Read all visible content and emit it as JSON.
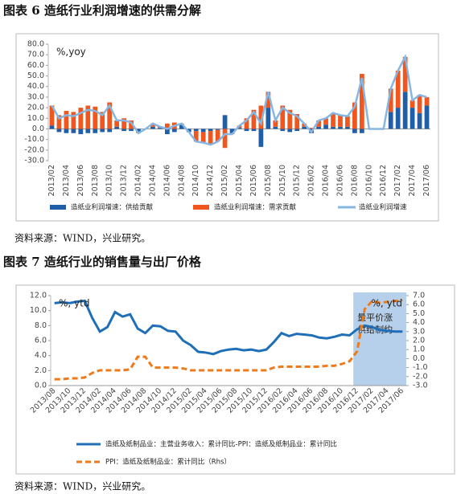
{
  "chart_data": [
    {
      "type": "bar",
      "stacked": true,
      "title": "图表 6  造纸行业利润增速的供需分解",
      "source": "资料来源：WIND，兴业研究。",
      "annotation": "%,yoy",
      "categories": [
        "2013/02",
        null,
        "2013/04",
        null,
        "2013/06",
        null,
        "2013/08",
        null,
        "2013/10",
        null,
        "2013/12",
        null,
        "2014/02",
        null,
        "2014/04",
        null,
        "2014/06",
        null,
        "2014/08",
        null,
        "2014/10",
        null,
        "2014/12",
        null,
        "2015/02",
        null,
        "2015/04",
        null,
        "2015/06",
        null,
        "2015/08",
        null,
        "2015/10",
        null,
        "2015/12",
        null,
        "2016/02",
        null,
        "2016/04",
        null,
        "2016/06",
        null,
        "2016/08",
        null,
        "2016/10",
        null,
        "2016/12",
        null,
        "2017/02",
        null,
        "2017/04",
        null,
        "2017/06"
      ],
      "series": [
        {
          "name": "造纸业利润增速：供给贡献",
          "type": "bar",
          "color": "#1f5ea8",
          "values": [
            3,
            -3,
            -4,
            -4,
            -5,
            -4,
            -4,
            -3,
            -3,
            2,
            -2,
            -2,
            -3,
            0,
            2,
            1,
            -5,
            -3,
            4,
            -3,
            -2,
            -3,
            -2,
            -1,
            13,
            -4,
            1,
            -2,
            -2,
            -17,
            20,
            2,
            -2,
            -3,
            -2,
            2,
            -4,
            2,
            4,
            2,
            2,
            2,
            -4,
            -4,
            0,
            0,
            0,
            16,
            20,
            35,
            20,
            15,
            22
          ]
        },
        {
          "name": "造纸业利润增速：需求贡献",
          "type": "bar",
          "color": "#f0561d",
          "values": [
            19,
            13,
            17,
            16,
            20,
            22,
            21,
            16,
            25,
            6,
            10,
            8,
            -1,
            0,
            3,
            1,
            5,
            6,
            1,
            0,
            -10,
            -10,
            -13,
            -11,
            -18,
            -1,
            2,
            10,
            18,
            22,
            15,
            6,
            22,
            18,
            14,
            3,
            1,
            6,
            6,
            13,
            11,
            10,
            25,
            52,
            0,
            0,
            0,
            22,
            35,
            33,
            7,
            17,
            8
          ]
        },
        {
          "name": "造纸业利润增速",
          "type": "line",
          "color": "#86b6e2",
          "values": [
            22,
            10,
            13,
            12,
            15,
            18,
            17,
            13,
            22,
            8,
            8,
            6,
            -4,
            0,
            5,
            2,
            0,
            3,
            5,
            -3,
            -12,
            -13,
            -15,
            -12,
            -5,
            -5,
            3,
            8,
            16,
            5,
            35,
            8,
            20,
            15,
            12,
            5,
            -3,
            8,
            10,
            15,
            13,
            12,
            21,
            48,
            0,
            0,
            0,
            38,
            55,
            68,
            27,
            32,
            30
          ]
        }
      ],
      "ylim": [
        -30,
        80
      ],
      "yticks": [
        {
          "value": -30,
          "label": "-30.0"
        },
        {
          "value": -20,
          "label": "-20.0"
        },
        {
          "value": -10,
          "label": "-10.0"
        },
        {
          "value": 0,
          "label": "0.0"
        },
        {
          "value": 10,
          "label": "10.0"
        },
        {
          "value": 20,
          "label": "20.0"
        },
        {
          "value": 30,
          "label": "30.0"
        },
        {
          "value": 40,
          "label": "40.0"
        },
        {
          "value": 50,
          "label": "50.0"
        },
        {
          "value": 60,
          "label": "60.0"
        },
        {
          "value": 70,
          "label": "70.0"
        },
        {
          "value": 80,
          "label": "80.0"
        }
      ],
      "grid": false,
      "legend": "bottom"
    },
    {
      "type": "line",
      "title": "图表 7  造纸行业的销售量与出厂价格",
      "source": "资料来源：WIND，兴业研究。",
      "annotation": "%, ytd",
      "annotation_right": "%, ytd",
      "highlight_text": [
        "量平价涨",
        "供给制约"
      ],
      "categories": [
        "2013/08",
        null,
        "2013/10",
        null,
        "2013/12",
        null,
        "2014/02",
        null,
        "2014/04",
        null,
        "2014/06",
        null,
        "2014/08",
        null,
        "2014/10",
        null,
        "2014/12",
        null,
        "2015/02",
        null,
        "2015/04",
        null,
        "2015/06",
        null,
        "2015/08",
        null,
        "2015/10",
        null,
        "2015/12",
        null,
        "2016/02",
        null,
        "2016/04",
        null,
        "2016/06",
        null,
        "2016/08",
        null,
        "2016/10",
        null,
        "2016/12",
        null,
        "2017/02",
        null,
        "2017/04",
        null,
        "2017/06"
      ],
      "series": [
        {
          "name": "造纸及纸制品业：主营业务收入：累计同比-PPI：造纸及纸制品业：累计同比",
          "color": "#1f6fb8",
          "dash": false,
          "values": [
            11.0,
            11.1,
            11.0,
            11.2,
            11.3,
            9.0,
            7.2,
            7.8,
            9.8,
            9.2,
            9.5,
            7.6,
            7.0,
            8.0,
            7.9,
            7.3,
            7.2,
            6.0,
            5.4,
            4.5,
            4.4,
            4.2,
            4.6,
            4.8,
            4.9,
            4.7,
            4.8,
            4.6,
            4.8,
            5.8,
            7.0,
            6.6,
            6.9,
            6.8,
            6.7,
            6.4,
            6.3,
            6.5,
            6.8,
            6.7,
            7.5,
            8.0,
            7.8,
            7.4,
            7.3,
            7.2,
            7.2
          ]
        },
        {
          "name": "PPI：造纸及纸制品业：累计同比（Rhs）",
          "color": "#ef7a1a",
          "dash": true,
          "axis": "y2",
          "values": [
            -2.3,
            -2.3,
            -2.2,
            -2.2,
            -2.1,
            -1.6,
            -1.3,
            -1.3,
            -1.3,
            -1.3,
            -1.2,
            0.2,
            0.2,
            -1.0,
            -1.0,
            -1.0,
            -1.0,
            -1.1,
            -1.3,
            -1.3,
            -1.3,
            -1.3,
            -1.3,
            -1.3,
            -1.3,
            -1.3,
            -1.3,
            -1.3,
            -1.3,
            -1.0,
            -0.9,
            -0.9,
            -0.9,
            -0.9,
            -0.9,
            -0.9,
            -0.8,
            -0.8,
            -0.6,
            -0.3,
            0.8,
            5.5,
            6.4,
            6.2,
            6.3,
            6.4,
            6.5
          ]
        }
      ],
      "ylim": [
        0,
        12
      ],
      "yticks": [
        {
          "value": 0,
          "label": "0.0"
        },
        {
          "value": 2,
          "label": "2.0"
        },
        {
          "value": 4,
          "label": "4.0"
        },
        {
          "value": 6,
          "label": "6.0"
        },
        {
          "value": 8,
          "label": "8.0"
        },
        {
          "value": 10,
          "label": "10.0"
        },
        {
          "value": 12,
          "label": "12.0"
        }
      ],
      "y2lim": [
        -3,
        7
      ],
      "y2ticks": [
        {
          "value": -3,
          "label": "-3.0"
        },
        {
          "value": -2,
          "label": "-2.0"
        },
        {
          "value": -1,
          "label": "-1.0"
        },
        {
          "value": 0,
          "label": "0.0"
        },
        {
          "value": 1,
          "label": "1.0"
        },
        {
          "value": 2,
          "label": "2.0"
        },
        {
          "value": 3,
          "label": "3.0"
        },
        {
          "value": 4,
          "label": "4.0"
        },
        {
          "value": 5,
          "label": "5.0"
        },
        {
          "value": 6,
          "label": "6.0"
        },
        {
          "value": 7,
          "label": "7.0"
        }
      ],
      "grid": false,
      "legend": "bottom"
    }
  ]
}
